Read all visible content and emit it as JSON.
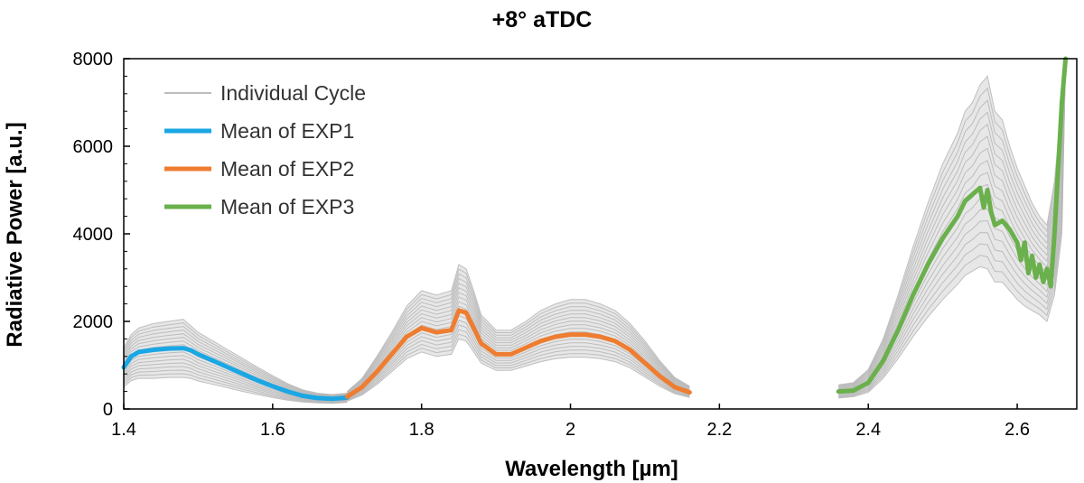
{
  "chart_data": {
    "type": "line",
    "title": "+8° aTDC",
    "xlabel": "Wavelength [µm]",
    "ylabel": "Radiative Power [a.u.]",
    "xlim": [
      1.4,
      2.68
    ],
    "ylim": [
      0,
      8000
    ],
    "xticks": [
      1.4,
      1.6,
      1.8,
      2.0,
      2.2,
      2.4,
      2.6
    ],
    "xtick_labels": [
      "1.4",
      "1.6",
      "1.8",
      "2",
      "2.2",
      "2.4",
      "2.6"
    ],
    "yticks": [
      0,
      2000,
      4000,
      6000,
      8000
    ],
    "ytick_labels": [
      "0",
      "2000",
      "4000",
      "6000",
      "8000"
    ],
    "grid": false,
    "legend_position": "top-left",
    "legend": [
      {
        "label": "Individual Cycle",
        "color": "#bdbdbd"
      },
      {
        "label": "Mean of EXP1",
        "color": "#1aa7e4"
      },
      {
        "label": "Mean of EXP2",
        "color": "#ee7d31"
      },
      {
        "label": "Mean of EXP3",
        "color": "#6ab04c"
      }
    ],
    "series": [
      {
        "name": "Mean of EXP1",
        "color": "#1aa7e4",
        "x": [
          1.4,
          1.41,
          1.42,
          1.44,
          1.46,
          1.48,
          1.49,
          1.5,
          1.52,
          1.54,
          1.56,
          1.58,
          1.6,
          1.62,
          1.64,
          1.66,
          1.68,
          1.7
        ],
        "y": [
          950,
          1200,
          1300,
          1350,
          1380,
          1390,
          1340,
          1250,
          1100,
          950,
          800,
          650,
          520,
          400,
          300,
          250,
          230,
          260
        ]
      },
      {
        "name": "Mean of EXP2",
        "color": "#ee7d31",
        "x": [
          1.7,
          1.72,
          1.74,
          1.76,
          1.78,
          1.8,
          1.82,
          1.84,
          1.85,
          1.86,
          1.87,
          1.88,
          1.9,
          1.92,
          1.94,
          1.96,
          1.98,
          2.0,
          2.02,
          2.04,
          2.06,
          2.08,
          2.1,
          2.12,
          2.14,
          2.16
        ],
        "y": [
          280,
          500,
          850,
          1250,
          1650,
          1850,
          1750,
          1800,
          2250,
          2200,
          1850,
          1500,
          1250,
          1250,
          1400,
          1550,
          1650,
          1700,
          1700,
          1650,
          1550,
          1350,
          1050,
          750,
          500,
          380
        ]
      },
      {
        "name": "Mean of EXP3",
        "color": "#6ab04c",
        "x": [
          2.36,
          2.38,
          2.4,
          2.42,
          2.44,
          2.46,
          2.48,
          2.5,
          2.52,
          2.53,
          2.54,
          2.55,
          2.555,
          2.56,
          2.565,
          2.57,
          2.58,
          2.59,
          2.6,
          2.605,
          2.61,
          2.615,
          2.62,
          2.625,
          2.63,
          2.635,
          2.64,
          2.645,
          2.65,
          2.655,
          2.66,
          2.665
        ],
        "y": [
          400,
          420,
          600,
          1100,
          1800,
          2600,
          3300,
          3900,
          4400,
          4750,
          4900,
          5050,
          4600,
          5000,
          4500,
          4200,
          4300,
          4100,
          3800,
          3400,
          3800,
          3100,
          3500,
          3000,
          3300,
          2900,
          3200,
          2800,
          4000,
          5500,
          7000,
          8000
        ]
      }
    ],
    "individual_cycle_bands": [
      {
        "x": [
          1.4,
          1.41,
          1.42,
          1.44,
          1.46,
          1.48,
          1.49,
          1.5,
          1.52,
          1.54,
          1.56,
          1.58,
          1.6,
          1.62,
          1.64,
          1.66,
          1.68,
          1.7
        ],
        "lower": [
          500,
          650,
          700,
          700,
          720,
          720,
          700,
          640,
          560,
          480,
          400,
          330,
          260,
          200,
          160,
          140,
          130,
          150
        ],
        "upper": [
          1400,
          1700,
          1850,
          1950,
          2000,
          2050,
          1900,
          1750,
          1550,
          1350,
          1150,
          950,
          760,
          580,
          440,
          360,
          330,
          360
        ]
      },
      {
        "x": [
          1.7,
          1.72,
          1.74,
          1.76,
          1.78,
          1.8,
          1.82,
          1.84,
          1.85,
          1.86,
          1.87,
          1.88,
          1.9,
          1.92,
          1.94,
          1.96,
          1.98,
          2.0,
          2.02,
          2.04,
          2.06,
          2.08,
          2.1,
          2.12,
          2.14,
          2.16
        ],
        "lower": [
          180,
          320,
          560,
          850,
          1150,
          1300,
          1200,
          1250,
          1600,
          1550,
          1300,
          1050,
          880,
          880,
          980,
          1080,
          1150,
          1180,
          1180,
          1150,
          1080,
          940,
          730,
          520,
          350,
          260
        ],
        "upper": [
          400,
          700,
          1200,
          1750,
          2350,
          2700,
          2600,
          2700,
          3300,
          3200,
          2700,
          2150,
          1800,
          1800,
          2000,
          2250,
          2400,
          2500,
          2500,
          2400,
          2250,
          1950,
          1550,
          1100,
          720,
          520
        ]
      },
      {
        "x": [
          2.36,
          2.38,
          2.4,
          2.42,
          2.44,
          2.46,
          2.48,
          2.5,
          2.52,
          2.53,
          2.54,
          2.55,
          2.56,
          2.57,
          2.58,
          2.59,
          2.6,
          2.61,
          2.62,
          2.63,
          2.64,
          2.65,
          2.66,
          2.665
        ],
        "lower": [
          250,
          280,
          380,
          700,
          1150,
          1650,
          2100,
          2500,
          2850,
          3050,
          3150,
          3250,
          3200,
          2900,
          2900,
          2700,
          2500,
          2350,
          2250,
          2150,
          2000,
          2600,
          4000,
          8000
        ],
        "upper": [
          550,
          600,
          900,
          1600,
          2600,
          3700,
          4700,
          5600,
          6300,
          6800,
          7000,
          7400,
          7600,
          6800,
          6600,
          6000,
          5500,
          5100,
          4700,
          4400,
          4200,
          5200,
          7000,
          8000
        ]
      }
    ]
  }
}
